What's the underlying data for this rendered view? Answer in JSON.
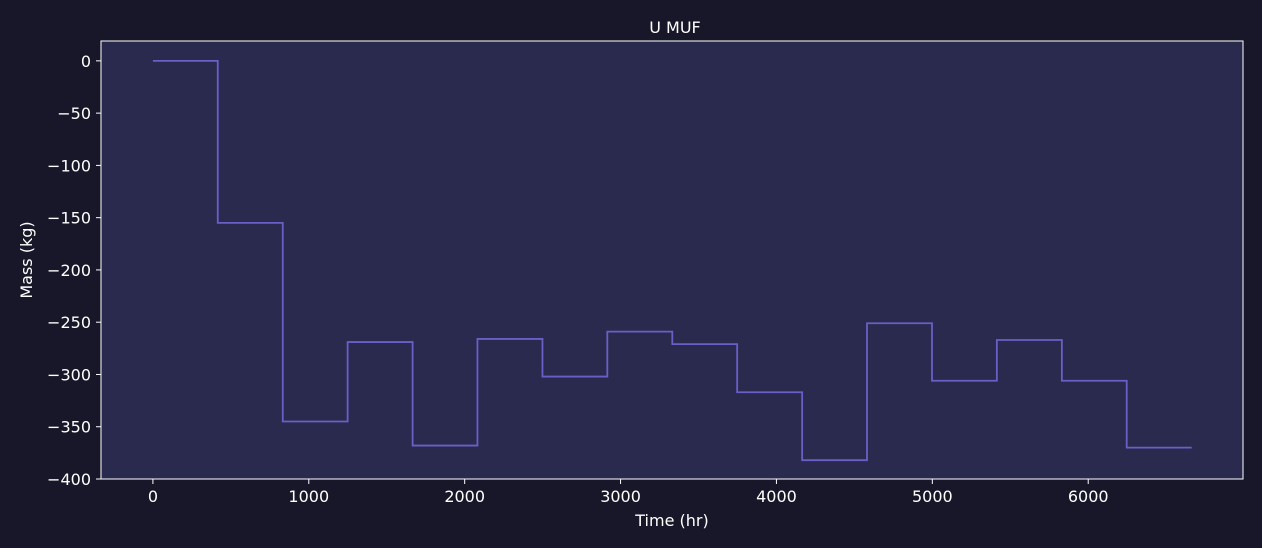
{
  "colors": {
    "figure_background": "#171729",
    "plot_background": "#292a4e",
    "line": "#6a5fc7",
    "text": "#ffffff",
    "axes": "#ffffff"
  },
  "chart_data": {
    "type": "line",
    "drawstyle": "steps-post",
    "title": "U MUF",
    "xlabel": "Time (hr)",
    "ylabel": "Mass (kg)",
    "xlim": [
      -333,
      6993
    ],
    "ylim": [
      -400,
      19
    ],
    "xticks": [
      0,
      1000,
      2000,
      3000,
      4000,
      5000,
      6000
    ],
    "xtick_labels": [
      "0",
      "1000",
      "2000",
      "3000",
      "4000",
      "5000",
      "6000"
    ],
    "yticks": [
      0,
      -50,
      -100,
      -150,
      -200,
      -250,
      -300,
      -350,
      -400
    ],
    "ytick_labels": [
      "0",
      "−50",
      "−100",
      "−150",
      "−200",
      "−250",
      "−300",
      "−350",
      "−400"
    ],
    "grid": false,
    "series": [
      {
        "x": [
          0,
          416,
          833,
          1249,
          1666,
          2082,
          2499,
          2915,
          3332,
          3748,
          4165,
          4581,
          4998,
          5414,
          5831,
          6247,
          6664
        ],
        "y": [
          0,
          -155,
          -345,
          -269,
          -368,
          -266,
          -302,
          -259,
          -271,
          -317,
          -382,
          -251,
          -306,
          -267,
          -306,
          -370,
          -370
        ]
      }
    ]
  }
}
